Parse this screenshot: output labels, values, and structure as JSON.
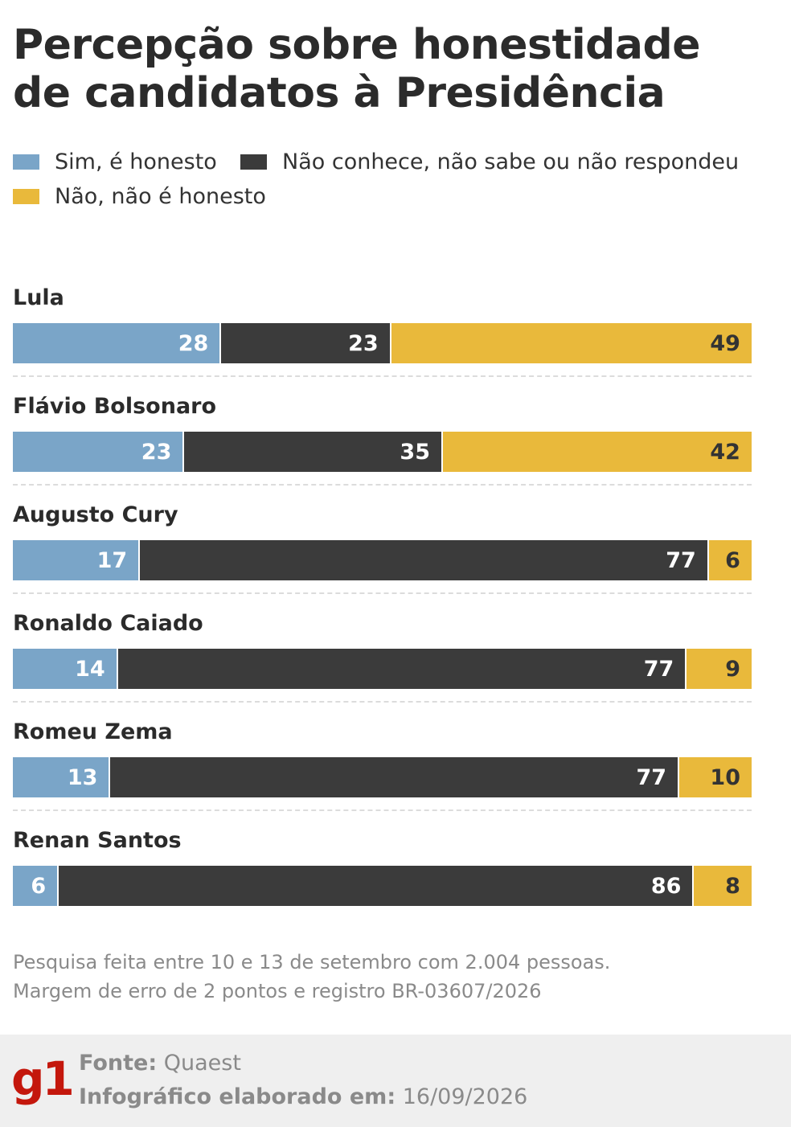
{
  "title_line1": "Percepção sobre honestidade",
  "title_line2": "de candidatos à Presidência",
  "legend": {
    "sim": "Sim, é honesto",
    "nao": "Não, não é honesto",
    "ns": "Não conhece, não sabe ou não respondeu"
  },
  "colors": {
    "sim": "#7aa5c8",
    "ns": "#3b3b3b",
    "nao": "#e9b93b",
    "brand": "#c4170c"
  },
  "chart_data": {
    "type": "bar",
    "stacked": true,
    "orientation": "horizontal",
    "categories": [
      "Lula",
      "Flávio Bolsonaro",
      "Augusto Cury",
      "Ronaldo Caiado",
      "Romeu Zema",
      "Renan Santos"
    ],
    "series": [
      {
        "name": "Sim, é honesto",
        "values": [
          28,
          23,
          17,
          14,
          13,
          6
        ]
      },
      {
        "name": "Não conhece, não sabe ou não respondeu",
        "values": [
          23,
          35,
          77,
          77,
          77,
          86
        ]
      },
      {
        "name": "Não, não é honesto",
        "values": [
          49,
          42,
          6,
          9,
          10,
          8
        ]
      }
    ],
    "title": "Percepção sobre honestidade de candidatos à Presidência",
    "legend_position": "top"
  },
  "rows": [
    {
      "name": "Lula",
      "sim": "28",
      "ns": "23",
      "nao": "49"
    },
    {
      "name": "Flávio Bolsonaro",
      "sim": "23",
      "ns": "35",
      "nao": "42"
    },
    {
      "name": "Augusto Cury",
      "sim": "17",
      "ns": "77",
      "nao": "6"
    },
    {
      "name": "Ronaldo Caiado",
      "sim": "14",
      "ns": "77",
      "nao": "9"
    },
    {
      "name": "Romeu Zema",
      "sim": "13",
      "ns": "77",
      "nao": "10"
    },
    {
      "name": "Renan Santos",
      "sim": "6",
      "ns": "86",
      "nao": "8"
    }
  ],
  "note_line1": "Pesquisa feita entre 10 e 13 de setembro com 2.004 pessoas.",
  "note_line2": "Margem de erro de 2 pontos e registro BR-03607/2026",
  "footer": {
    "logo": "g1",
    "source_label": "Fonte:",
    "source_value": "Quaest",
    "date_label": "Infográfico elaborado em:",
    "date_value": "16/09/2026"
  }
}
